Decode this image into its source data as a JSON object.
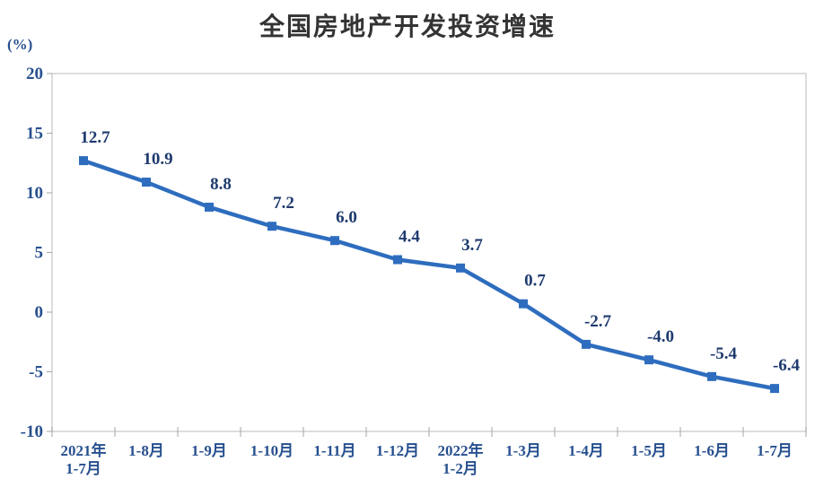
{
  "page": {
    "background": "#ffffff"
  },
  "chart_data": {
    "type": "line",
    "title": "全国房地产开发投资增速",
    "unit_label": "(%)",
    "categories": [
      "2021年\n1-7月",
      "1-8月",
      "1-9月",
      "1-10月",
      "1-11月",
      "1-12月",
      "2022年\n1-2月",
      "1-3月",
      "1-4月",
      "1-5月",
      "1-6月",
      "1-7月"
    ],
    "series": [
      {
        "name": "全国房地产开发投资增速",
        "values": [
          12.7,
          10.9,
          8.8,
          7.2,
          6.0,
          4.4,
          3.7,
          0.7,
          -2.7,
          -4.0,
          -5.4,
          -6.4
        ]
      }
    ],
    "data_labels": [
      "12.7",
      "10.9",
      "8.8",
      "7.2",
      "6.0",
      "4.4",
      "3.7",
      "0.7",
      "-2.7",
      "-4.0",
      "-5.4",
      "-6.4"
    ],
    "y_ticks": [
      20,
      15,
      10,
      5,
      0,
      -5,
      -10
    ],
    "ylim": [
      -10,
      20
    ],
    "xlabel": "",
    "ylabel": "(%)",
    "grid": false,
    "legend": "none",
    "marker_shape": "square",
    "colors": {
      "line": "#2E6DBE",
      "marker": "#2E6DBE",
      "data_label": "#1E3A6E",
      "axis_text": "#27508F",
      "axis_line": "#D0D0D0",
      "tick": "#A6A6A6",
      "title": "#333333"
    }
  }
}
